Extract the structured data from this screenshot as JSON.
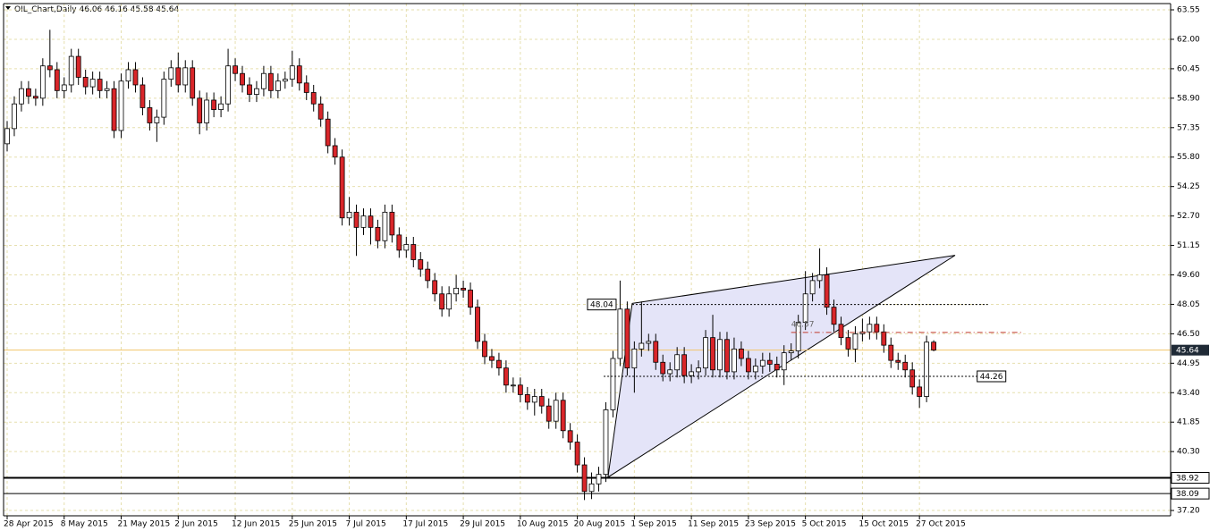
{
  "chart_data": {
    "type": "candlestick",
    "title": "OIL_Chart,Daily",
    "categories": [
      "28 Apr 2015",
      null,
      null,
      null,
      null,
      null,
      null,
      null,
      "8 May 2015",
      null,
      null,
      null,
      null,
      null,
      null,
      null,
      "21 May 2015",
      null,
      null,
      null,
      null,
      null,
      null,
      null,
      "2 Jun 2015",
      null,
      null,
      null,
      null,
      null,
      null,
      null,
      "12 Jun 2015",
      null,
      null,
      null,
      null,
      null,
      null,
      null,
      "25 Jun 2015",
      null,
      null,
      null,
      null,
      null,
      null,
      null,
      "7 Jul 2015",
      null,
      null,
      null,
      null,
      null,
      null,
      null,
      "17 Jul 2015",
      null,
      null,
      null,
      null,
      null,
      null,
      null,
      "29 Jul 2015",
      null,
      null,
      null,
      null,
      null,
      null,
      null,
      "10 Aug 2015",
      null,
      null,
      null,
      null,
      null,
      null,
      null,
      "20 Aug 2015",
      null,
      null,
      null,
      null,
      null,
      null,
      null,
      "1 Sep 2015",
      null,
      null,
      null,
      null,
      null,
      null,
      null,
      "11 Sep 2015",
      null,
      null,
      null,
      null,
      null,
      null,
      null,
      "23 Sep 2015",
      null,
      null,
      null,
      null,
      null,
      null,
      null,
      "5 Oct 2015",
      null,
      null,
      null,
      null,
      null,
      null,
      null,
      "15 Oct 2015",
      null,
      null,
      null,
      null,
      null,
      null,
      null,
      "27 Oct 2015",
      null,
      null
    ],
    "open": [
      56.5,
      57.3,
      58.6,
      59.4,
      59.0,
      58.9,
      60.6,
      60.4,
      59.3,
      59.6,
      61.1,
      60.0,
      59.5,
      59.9,
      59.3,
      59.4,
      57.2,
      59.8,
      60.4,
      59.6,
      58.4,
      57.6,
      57.9,
      59.9,
      60.5,
      59.6,
      60.5,
      58.9,
      57.6,
      58.8,
      58.3,
      58.6,
      60.6,
      60.2,
      59.6,
      59.1,
      59.4,
      60.2,
      59.3,
      59.8,
      59.9,
      60.6,
      59.7,
      59.2,
      58.6,
      57.8,
      56.4,
      55.8,
      52.6,
      52.9,
      52.1,
      52.7,
      52.1,
      51.4,
      52.9,
      51.7,
      50.9,
      51.2,
      50.4,
      49.9,
      49.3,
      48.6,
      47.8,
      48.6,
      48.9,
      48.8,
      47.9,
      46.1,
      45.3,
      45.1,
      44.7,
      43.8,
      43.8,
      43.3,
      42.9,
      43.2,
      42.7,
      41.9,
      43.0,
      41.4,
      40.8,
      39.6,
      38.2,
      38.6,
      39.1,
      42.5,
      45.2,
      47.8,
      44.7,
      45.7,
      46.0,
      46.1,
      45.0,
      44.4,
      44.6,
      45.4,
      44.3,
      44.5,
      44.7,
      46.3,
      44.6,
      46.2,
      44.5,
      45.7,
      45.2,
      44.5,
      44.8,
      45.1,
      44.9,
      44.6,
      45.5,
      45.6,
      47.1,
      48.6,
      49.3,
      49.6,
      47.9,
      47.0,
      46.3,
      45.7,
      46.5,
      46.6,
      47.0,
      46.6,
      45.9,
      45.1,
      45.0,
      44.6,
      43.7,
      43.2,
      46.06
    ],
    "high": [
      57.7,
      59.0,
      59.8,
      59.8,
      59.4,
      61.0,
      62.5,
      60.8,
      60.0,
      61.5,
      61.5,
      60.4,
      60.3,
      60.3,
      59.8,
      59.8,
      60.2,
      60.8,
      60.8,
      60.0,
      58.8,
      58.3,
      60.3,
      60.9,
      61.3,
      60.9,
      60.9,
      59.3,
      59.2,
      59.2,
      59.0,
      61.5,
      61.0,
      60.6,
      60.0,
      59.8,
      60.6,
      60.6,
      60.2,
      60.3,
      61.4,
      61.0,
      60.1,
      59.6,
      59.0,
      58.2,
      56.8,
      56.2,
      53.7,
      53.3,
      53.1,
      53.1,
      52.5,
      53.3,
      53.3,
      52.1,
      51.6,
      51.6,
      50.8,
      50.3,
      49.7,
      49.0,
      49.0,
      49.6,
      49.3,
      49.2,
      48.3,
      46.5,
      45.7,
      45.5,
      45.1,
      44.2,
      44.2,
      43.7,
      43.6,
      43.6,
      43.1,
      43.4,
      43.4,
      41.8,
      41.2,
      40.0,
      39.2,
      39.5,
      42.9,
      45.6,
      49.3,
      48.2,
      46.1,
      48.2,
      46.5,
      46.5,
      45.4,
      45.0,
      45.8,
      45.8,
      44.9,
      45.1,
      46.7,
      47.5,
      46.6,
      46.6,
      46.3,
      46.1,
      45.6,
      45.2,
      45.5,
      45.5,
      45.3,
      45.9,
      46.0,
      47.5,
      49.8,
      49.7,
      51.0,
      50.0,
      48.3,
      47.4,
      46.7,
      46.9,
      47.3,
      47.4,
      47.4,
      47.0,
      46.3,
      45.5,
      45.4,
      45.0,
      44.1,
      46.4,
      46.16
    ],
    "low": [
      56.1,
      56.9,
      58.2,
      58.6,
      58.5,
      58.5,
      60.0,
      58.9,
      58.9,
      59.2,
      59.6,
      59.1,
      59.1,
      58.9,
      58.9,
      56.8,
      56.8,
      59.4,
      59.2,
      58.0,
      57.2,
      56.6,
      57.5,
      59.5,
      59.2,
      59.2,
      58.5,
      57.0,
      57.2,
      57.9,
      57.9,
      58.2,
      59.8,
      59.2,
      58.7,
      58.7,
      59.0,
      58.9,
      58.9,
      59.4,
      59.5,
      59.3,
      58.8,
      58.2,
      57.4,
      56.0,
      55.4,
      52.2,
      52.2,
      50.6,
      51.7,
      51.2,
      51.0,
      51.0,
      51.3,
      50.5,
      50.5,
      50.0,
      49.5,
      48.9,
      48.2,
      47.4,
      47.4,
      48.2,
      48.4,
      47.5,
      45.7,
      44.9,
      44.7,
      44.3,
      43.4,
      43.4,
      42.9,
      42.5,
      42.2,
      42.3,
      41.5,
      41.5,
      41.0,
      40.4,
      39.2,
      37.75,
      37.8,
      38.2,
      38.7,
      42.1,
      44.8,
      44.3,
      43.4,
      45.3,
      45.6,
      44.6,
      44.0,
      44.0,
      44.2,
      43.9,
      43.9,
      44.1,
      44.3,
      44.2,
      44.2,
      44.1,
      44.1,
      44.8,
      44.1,
      44.1,
      44.4,
      44.5,
      44.2,
      43.8,
      45.1,
      45.2,
      46.7,
      48.2,
      48.9,
      47.5,
      46.6,
      45.9,
      45.3,
      45.0,
      46.1,
      46.2,
      46.2,
      45.5,
      44.7,
      44.6,
      44.2,
      43.3,
      42.6,
      42.9,
      45.58
    ],
    "close": [
      57.3,
      58.6,
      59.4,
      59.0,
      58.9,
      60.6,
      60.4,
      59.3,
      59.6,
      61.1,
      60.0,
      59.5,
      59.9,
      59.3,
      59.4,
      57.2,
      59.8,
      60.4,
      59.6,
      58.4,
      57.6,
      57.9,
      59.9,
      60.5,
      59.6,
      60.5,
      58.9,
      57.6,
      58.8,
      58.3,
      58.6,
      60.6,
      60.2,
      59.6,
      59.1,
      59.4,
      60.2,
      59.3,
      59.8,
      59.9,
      60.6,
      59.7,
      59.2,
      58.6,
      57.8,
      56.4,
      55.8,
      52.6,
      52.9,
      52.1,
      52.7,
      52.1,
      51.4,
      52.9,
      51.7,
      50.9,
      51.2,
      50.4,
      49.9,
      49.3,
      48.6,
      47.8,
      48.6,
      48.9,
      48.8,
      47.9,
      46.1,
      45.3,
      45.1,
      44.7,
      43.8,
      43.8,
      43.3,
      42.9,
      43.2,
      42.7,
      41.9,
      43.0,
      41.4,
      40.8,
      39.6,
      38.2,
      38.6,
      39.1,
      42.5,
      45.2,
      47.8,
      44.7,
      45.7,
      46.0,
      46.1,
      45.0,
      44.4,
      44.6,
      45.4,
      44.3,
      44.5,
      44.7,
      46.3,
      44.6,
      46.2,
      44.5,
      45.7,
      45.2,
      44.5,
      44.8,
      45.1,
      44.9,
      44.6,
      45.5,
      45.6,
      47.1,
      48.6,
      49.3,
      49.6,
      47.9,
      47.0,
      46.3,
      45.7,
      46.5,
      46.6,
      47.0,
      46.6,
      45.9,
      45.1,
      45.0,
      44.6,
      43.7,
      43.2,
      46.06,
      45.64
    ],
    "up_color": "#ffffff",
    "down_color": "#d9262a",
    "ylim": [
      36.92,
      63.88
    ],
    "yticks": [
      63.55,
      {
        "value": 62,
        "label": "62.00"
      },
      60.45,
      {
        "value": 58.9,
        "label": "58.90"
      },
      57.35,
      {
        "value": 55.8,
        "label": "55.80"
      },
      54.25,
      {
        "value": 52.7,
        "label": "52.70"
      },
      51.15,
      {
        "value": 49.6,
        "label": "49.60"
      },
      48.05,
      {
        "value": 46.5,
        "label": "46.50"
      },
      44.95,
      {
        "value": 43.4,
        "label": "43.40"
      },
      41.85,
      {
        "value": 40.3,
        "label": "40.30"
      },
      {
        "value": 37.2,
        "label": "37.20"
      }
    ],
    "grid": true,
    "price_line_color": "#f2c46a",
    "levels": [
      {
        "value": 38.92,
        "color": "#000000",
        "width": 2
      },
      {
        "value": 38.09,
        "color": "#000000",
        "width": 1
      }
    ],
    "drawings": [
      {
        "type": "triangle",
        "points": [
          [
            87.7,
            48.1
          ],
          [
            133,
            50.63
          ],
          [
            84.3,
            38.95
          ]
        ],
        "fill": "#e4e4f8",
        "color": "#000000"
      },
      {
        "type": "hline",
        "value": 48.04,
        "x": [
          87.7,
          137.6
        ],
        "color": "#000000",
        "label_side": "left"
      },
      {
        "type": "hline",
        "value": 44.26,
        "x": [
          83.7,
          136.1
        ],
        "color": "#000000",
        "label_side": "right"
      },
      {
        "type": "hline",
        "value": 46.57,
        "x": [
          110,
          142.4
        ],
        "color": "#c0392b",
        "label_side": "above"
      }
    ]
  }
}
